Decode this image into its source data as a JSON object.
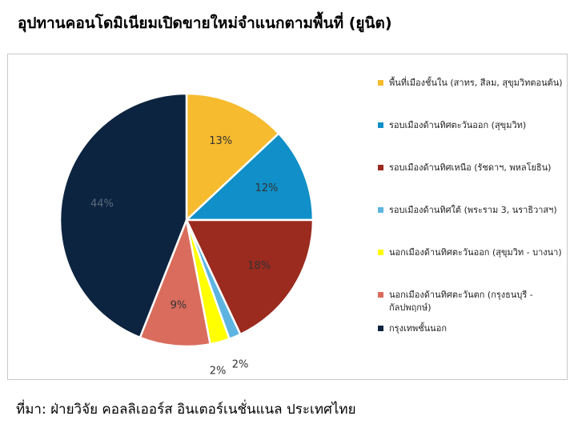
{
  "title": "อุปทานคอนโดมิเนียมเปิดขายใหม่จำแนกตามพื้นที่ (ยูนิต)",
  "source": "ที่มา: ฝ่ายวิจัย คอลลิเออร์ส อินเตอร์เนชั่นแนล ประเทศไทย",
  "chart_data": {
    "type": "pie",
    "unit": "%",
    "series": [
      {
        "name": "พื้นที่เมืองชั้นใน (สาทร, สีลม, สุขุมวิทตอนต้น)",
        "value": 13,
        "label": "13%",
        "color": "#f6bb2f",
        "label_color": "#333333"
      },
      {
        "name": "รอบเมืองด้านทิศตะวันออก (สุขุมวิท)",
        "value": 12,
        "label": "12%",
        "color": "#108fc8",
        "label_color": "#333333"
      },
      {
        "name": "รอบเมืองด้านทิศเหนือ (รัชดาฯ, พหลโยธิน)",
        "value": 18,
        "label": "18%",
        "color": "#9b2a1f",
        "label_color": "#333333"
      },
      {
        "name": "รอบเมืองด้านทิศใต้ (พระราม 3, นราธิวาสฯ)",
        "value": 1.5,
        "label": "2%",
        "color": "#5eb4e0",
        "label_color": "#333333"
      },
      {
        "name": "นอกเมืองด้านทิศตะวันออก (สุขุมวิท - บางนา)",
        "value": 2.5,
        "label": "2%",
        "color": "#ffff00",
        "label_color": "#333333"
      },
      {
        "name": "นอกเมืองด้านทิศตะวันตก (กรุงธนบุรี - กัลปพฤกษ์)",
        "value": 9,
        "label": "9%",
        "color": "#d96c5c",
        "label_color": "#333333"
      },
      {
        "name": "กรุงเทพชั้นนอก",
        "value": 44,
        "label": "44%",
        "color": "#0d2440",
        "label_color": "#5a6a7d"
      }
    ],
    "legend": "right"
  }
}
